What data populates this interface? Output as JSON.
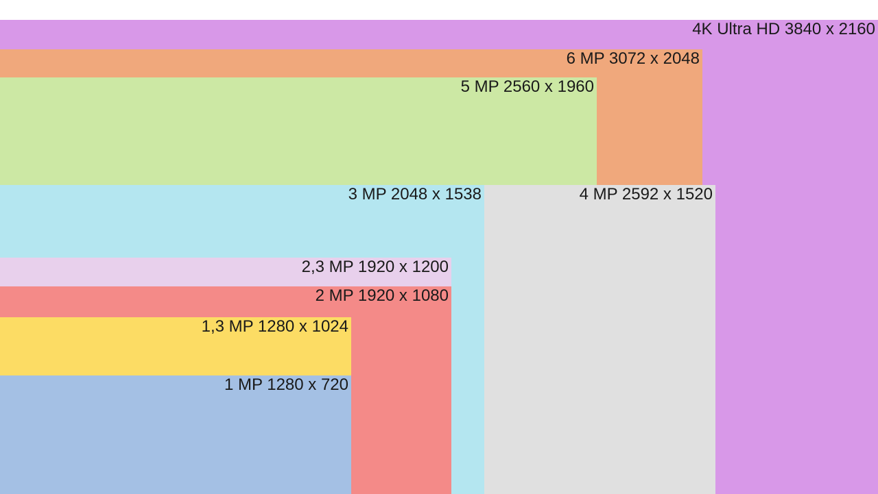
{
  "rectangles": [
    {
      "label": "4K Ultra HD 3840 x 2160",
      "color": "#d898e8"
    },
    {
      "label": "6 MP 3072 x 2048",
      "color": "#f0a87c"
    },
    {
      "label": "5 MP 2560 x 1960",
      "color": "#cce8a4"
    },
    {
      "label": "4 MP 2592 x 1520",
      "color": "#e0e0e0"
    },
    {
      "label": "3 MP 2048 x 1538",
      "color": "#b4e6f0"
    },
    {
      "label": "2,3 MP 1920 x 1200",
      "color": "#e8d0ec"
    },
    {
      "label": "2 MP 1920 x 1080",
      "color": "#f48a88"
    },
    {
      "label": "1,3 MP 1280 x 1024",
      "color": "#fcdc64"
    },
    {
      "label": "1 MP 1280 x 720",
      "color": "#a4c0e4"
    }
  ]
}
